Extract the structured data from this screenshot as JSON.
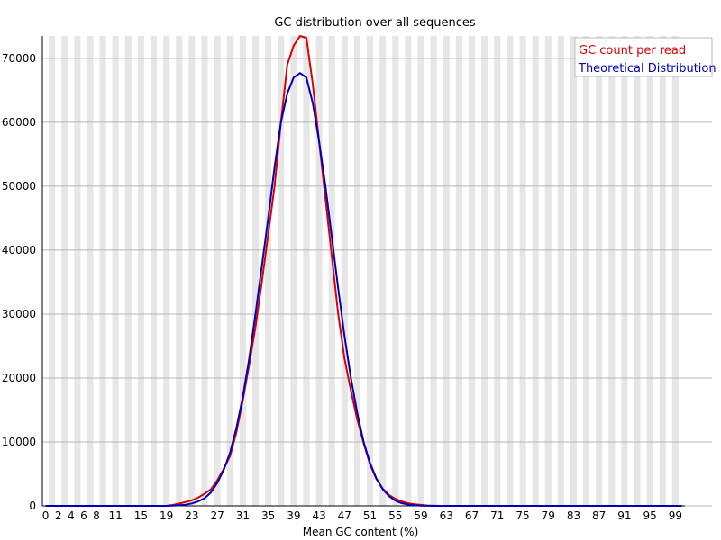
{
  "chart_data": {
    "type": "line",
    "title": "GC distribution over all sequences",
    "xlabel": "Mean GC content (%)",
    "ylabel": "",
    "xlim": [
      0,
      100
    ],
    "ylim": [
      0,
      73500
    ],
    "x_ticks": [
      0,
      2,
      4,
      6,
      8,
      11,
      15,
      19,
      23,
      27,
      31,
      35,
      39,
      43,
      47,
      51,
      55,
      59,
      63,
      67,
      71,
      75,
      79,
      83,
      87,
      91,
      95,
      99
    ],
    "y_ticks": [
      0,
      10000,
      20000,
      30000,
      40000,
      50000,
      60000,
      70000
    ],
    "grid": true,
    "legend_position": "top-right",
    "colors": {
      "series_1": "#dd0000",
      "series_2": "#0000bb"
    },
    "x": [
      0,
      1,
      2,
      3,
      4,
      5,
      6,
      7,
      8,
      9,
      10,
      11,
      12,
      13,
      14,
      15,
      16,
      17,
      18,
      19,
      20,
      21,
      22,
      23,
      24,
      25,
      26,
      27,
      28,
      29,
      30,
      31,
      32,
      33,
      34,
      35,
      36,
      37,
      38,
      39,
      40,
      41,
      42,
      43,
      44,
      45,
      46,
      47,
      48,
      49,
      50,
      51,
      52,
      53,
      54,
      55,
      56,
      57,
      58,
      59,
      60,
      61,
      62,
      63,
      64,
      65,
      66,
      67,
      68,
      69,
      70,
      71,
      72,
      73,
      74,
      75,
      76,
      77,
      78,
      79,
      80,
      81,
      82,
      83,
      84,
      85,
      86,
      87,
      88,
      89,
      90,
      91,
      92,
      93,
      94,
      95,
      96,
      97,
      98,
      99,
      100
    ],
    "series": [
      {
        "name": "GC count per read",
        "values": [
          0,
          0,
          0,
          0,
          0,
          0,
          0,
          0,
          0,
          0,
          0,
          0,
          0,
          0,
          0,
          0,
          0,
          0,
          0,
          0,
          150,
          350,
          600,
          850,
          1300,
          1900,
          2600,
          4000,
          5800,
          7800,
          11500,
          16500,
          22000,
          28000,
          35000,
          42500,
          50000,
          60000,
          69000,
          72000,
          73500,
          73200,
          66000,
          57000,
          48000,
          39000,
          30000,
          23000,
          18000,
          13500,
          9800,
          6500,
          4200,
          2700,
          1700,
          1100,
          700,
          400,
          250,
          150,
          60,
          20,
          0,
          0,
          0,
          0,
          0,
          0,
          0,
          0,
          0,
          0,
          0,
          0,
          0,
          0,
          0,
          0,
          0,
          0,
          0,
          0,
          0,
          0,
          0,
          0,
          0,
          0,
          0,
          0,
          0,
          0,
          0,
          0,
          0,
          0,
          0,
          0,
          0,
          0,
          0
        ]
      },
      {
        "name": "Theoretical Distribution",
        "values": [
          0,
          0,
          0,
          0,
          0,
          0,
          0,
          0,
          0,
          0,
          0,
          0,
          0,
          0,
          0,
          0,
          0,
          0,
          0,
          0,
          30,
          80,
          180,
          380,
          700,
          1200,
          2100,
          3600,
          5600,
          8300,
          12200,
          17000,
          23000,
          30000,
          37500,
          45000,
          53000,
          60000,
          64500,
          67000,
          67700,
          67000,
          63000,
          57000,
          50000,
          42000,
          34000,
          26500,
          20000,
          14500,
          10000,
          6700,
          4300,
          2600,
          1500,
          800,
          400,
          200,
          90,
          40,
          15,
          0,
          0,
          0,
          0,
          0,
          0,
          0,
          0,
          0,
          0,
          0,
          0,
          0,
          0,
          0,
          0,
          0,
          0,
          0,
          0,
          0,
          0,
          0,
          0,
          0,
          0,
          0,
          0,
          0,
          0,
          0,
          0,
          0,
          0,
          0,
          0,
          0,
          0,
          0,
          0
        ]
      }
    ]
  }
}
